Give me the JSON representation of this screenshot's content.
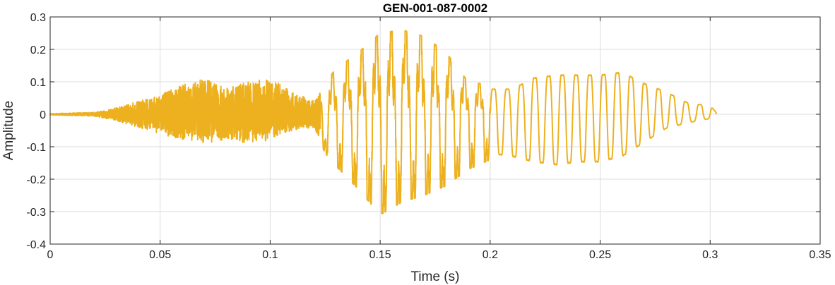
{
  "chart_data": {
    "type": "line",
    "title": "GEN-001-087-0002",
    "xlabel": "Time (s)",
    "ylabel": "Amplitude",
    "xlim": [
      0,
      0.35
    ],
    "ylim": [
      -0.4,
      0.3
    ],
    "xticks": [
      0,
      0.05,
      0.1,
      0.15,
      0.2,
      0.25,
      0.3,
      0.35
    ],
    "xtick_labels": [
      "0",
      "0.05",
      "0.1",
      "0.15",
      "0.2",
      "0.25",
      "0.3",
      "0.35"
    ],
    "yticks": [
      -0.4,
      -0.3,
      -0.2,
      -0.1,
      0,
      0.1,
      0.2,
      0.3
    ],
    "ytick_labels": [
      "-0.4",
      "-0.3",
      "-0.2",
      "-0.1",
      "0",
      "0.1",
      "0.2",
      "0.3"
    ],
    "grid": true,
    "line_color": "#EDB120",
    "series": [
      {
        "envelope": {
          "t": [
            0,
            0.01,
            0.02,
            0.03,
            0.04,
            0.05,
            0.06,
            0.07,
            0.08,
            0.09,
            0.1,
            0.11,
            0.12,
            0.125,
            0.13,
            0.14,
            0.15,
            0.16,
            0.17,
            0.18,
            0.19,
            0.2,
            0.21,
            0.22,
            0.23,
            0.24,
            0.25,
            0.26,
            0.27,
            0.28,
            0.29,
            0.3,
            0.303
          ],
          "upper": [
            0.002,
            0.004,
            0.006,
            0.02,
            0.04,
            0.06,
            0.09,
            0.11,
            0.08,
            0.1,
            0.11,
            0.07,
            0.04,
            0.1,
            0.14,
            0.19,
            0.25,
            0.26,
            0.24,
            0.19,
            0.1,
            0.09,
            0.09,
            0.13,
            0.14,
            0.14,
            0.14,
            0.15,
            0.11,
            0.08,
            0.04,
            0.03,
            0.005
          ],
          "lower": [
            -0.002,
            -0.004,
            -0.006,
            -0.02,
            -0.04,
            -0.06,
            -0.08,
            -0.09,
            -0.08,
            -0.09,
            -0.08,
            -0.05,
            -0.04,
            -0.12,
            -0.16,
            -0.23,
            -0.31,
            -0.27,
            -0.25,
            -0.22,
            -0.17,
            -0.14,
            -0.15,
            -0.17,
            -0.18,
            -0.17,
            -0.17,
            -0.15,
            -0.1,
            -0.05,
            -0.03,
            -0.015,
            -0.005
          ]
        },
        "regime_change_s": [
          0.123,
          0.2
        ]
      }
    ]
  }
}
